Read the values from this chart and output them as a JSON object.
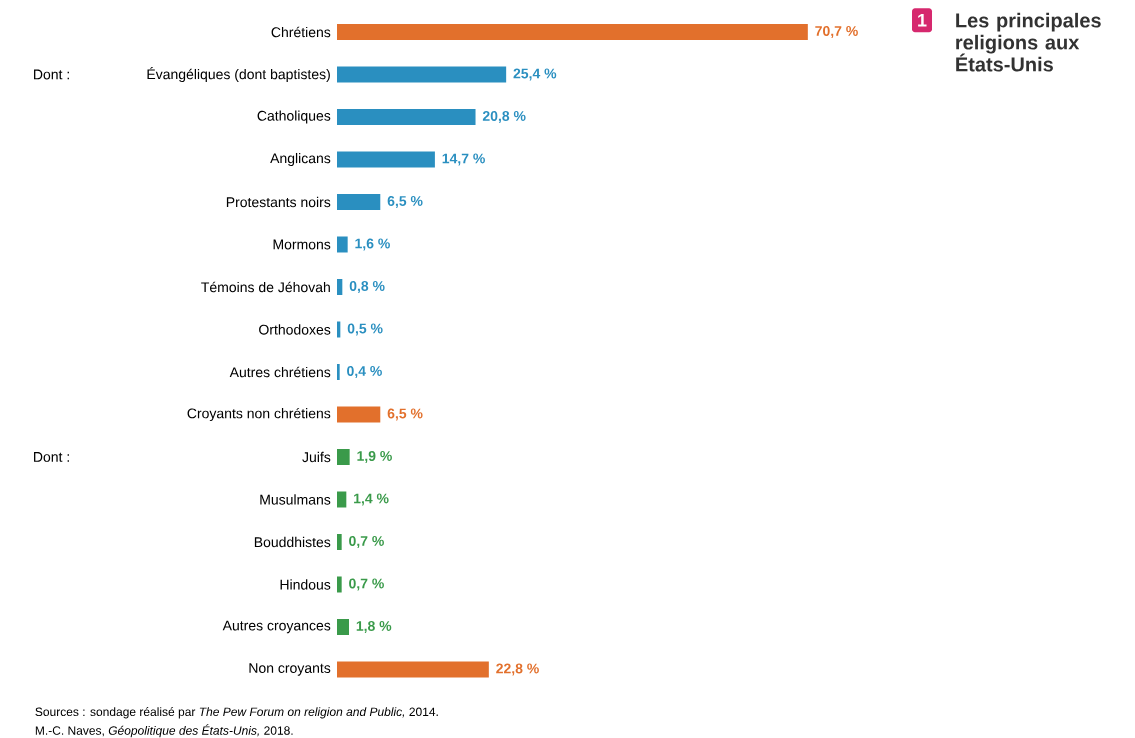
{
  "chart_data": {
    "type": "bar",
    "orientation": "horizontal",
    "title": "Les principales religions aux États-Unis",
    "categories": [
      "Chrétiens",
      "Évangéliques (dont baptistes)",
      "Catholiques",
      "Anglicans",
      "Protestants noirs",
      "Mormons",
      "Témoins de Jéhovah",
      "Orthodoxes",
      "Autres chrétiens",
      "Croyants non chrétiens",
      "Juifs",
      "Musulmans",
      "Bouddhistes",
      "Hindous",
      "Autres croyances",
      "Non croyants"
    ],
    "values": [
      70.7,
      25.4,
      20.8,
      14.7,
      6.5,
      1.6,
      0.8,
      0.5,
      0.4,
      6.5,
      1.9,
      1.4,
      0.7,
      0.7,
      1.8,
      22.8
    ],
    "value_labels": [
      "70,7 %",
      "25,4 %",
      "20,8 %",
      "14,7 %",
      "6,5 %",
      "1,6 %",
      "0,8 %",
      "0,5 %",
      "0,4 %",
      "6,5 %",
      "1,9 %",
      "1,4 %",
      "0,7 %",
      "0,7 %",
      "1,8 %",
      "22,8 %"
    ],
    "colors": [
      "#e2702c",
      "#2a8fc0",
      "#2a8fc0",
      "#2a8fc0",
      "#2a8fc0",
      "#2a8fc0",
      "#2a8fc0",
      "#2a8fc0",
      "#2a8fc0",
      "#e2702c",
      "#3a9a4a",
      "#3a9a4a",
      "#3a9a4a",
      "#3a9a4a",
      "#3a9a4a",
      "#e2702c"
    ],
    "tick_labels": "y",
    "annotations": [
      "Dont :",
      "Dont :",
      "1",
      "Sources : sondage réalisé par *The Pew Forum on religion and Public,* 2014.",
      "M.-C. Naves, *Géopolitique des États-Unis,* 2018."
    ]
  }
}
